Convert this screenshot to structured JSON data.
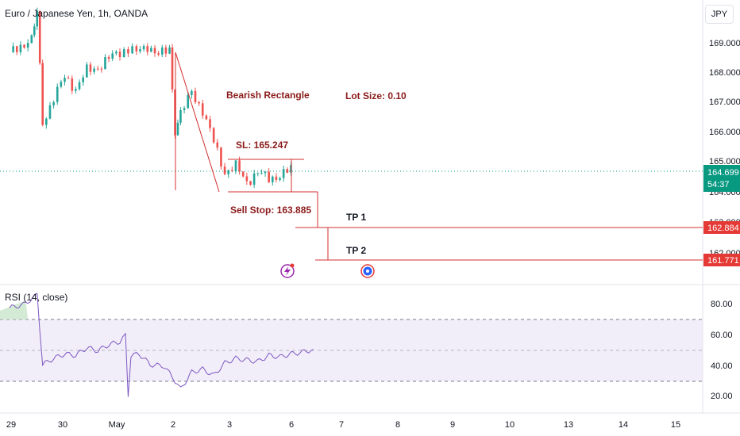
{
  "header": {
    "title": "Euro / Japanese Yen, 1h, OANDA",
    "currency_button": "JPY"
  },
  "price_axis": {
    "ticks": [
      "169.000",
      "168.000",
      "167.000",
      "166.000",
      "165.000",
      "164.000",
      "163.000",
      "162.000"
    ],
    "last_price": "164.699",
    "countdown": "54:37",
    "tp1_tag": "162.884",
    "tp2_tag": "161.771"
  },
  "annotations": {
    "pattern": "Bearish Rectangle",
    "lot_size": "Lot Size: 0.10",
    "stop_loss": "SL: 165.247",
    "sell_stop": "Sell Stop: 163.885",
    "tp1": "TP 1",
    "tp2": "TP 2"
  },
  "rsi": {
    "label": "RSI (14, close)",
    "ticks": [
      "80.00",
      "60.00",
      "40.00",
      "20.00"
    ]
  },
  "time_axis": {
    "labels": [
      "29",
      "30",
      "May",
      "2",
      "3",
      "6",
      "7",
      "8",
      "9",
      "10",
      "13",
      "14",
      "15"
    ]
  },
  "colors": {
    "up": "#26a69a",
    "down": "#ef5350",
    "annotation": "#d32f2f",
    "annotation_text": "#8b1a1a",
    "rsi_line": "#7e57c2",
    "rsi_band": "#ede7f6",
    "last_price": "#089981"
  },
  "icons": [
    "lightning-event-icon",
    "economic-event-icon"
  ],
  "chart_data": {
    "type": "candlestick",
    "symbol": "Euro / Japanese Yen",
    "interval": "1h",
    "ylim": [
      161.2,
      169.8
    ],
    "levels": {
      "last": 164.699,
      "sl": 165.247,
      "sell_stop": 163.885,
      "tp1": 162.884,
      "tp2": 161.771
    },
    "series": [
      {
        "name": "price",
        "x": [
          0.0,
          0.2,
          0.4,
          0.5,
          0.6,
          0.8,
          1.0,
          1.2,
          1.4,
          1.6,
          1.8,
          2.0,
          2.15,
          2.3,
          2.5,
          2.7,
          2.9,
          3.0,
          3.1,
          3.3,
          3.5,
          3.7,
          3.9,
          4.1,
          4.3,
          4.5,
          4.7,
          4.9,
          5.1,
          5.3,
          5.5
        ],
        "y": [
          168.5,
          168.7,
          168.9,
          169.8,
          166.2,
          167.0,
          167.7,
          167.3,
          167.9,
          168.0,
          168.3,
          168.5,
          168.6,
          168.5,
          168.7,
          168.4,
          168.6,
          166.0,
          166.5,
          167.2,
          166.6,
          165.6,
          164.6,
          164.8,
          164.3,
          164.6,
          164.4,
          164.5,
          164.7,
          164.6,
          164.7
        ]
      },
      {
        "name": "RSI (14, close)",
        "x": [
          0.0,
          0.25,
          0.45,
          0.5,
          0.6,
          0.8,
          1.0,
          1.2,
          1.4,
          1.6,
          1.8,
          2.0,
          2.1,
          2.15,
          2.2,
          2.35,
          2.55,
          2.8,
          2.95,
          3.1,
          3.3,
          3.5,
          3.7,
          3.9,
          4.1,
          4.3,
          4.5,
          4.7,
          4.9,
          5.1,
          5.3,
          5.5
        ],
        "y": [
          78,
          80,
          85,
          87,
          41,
          45,
          48,
          47,
          52,
          50,
          54,
          56,
          60,
          21,
          47,
          48,
          41,
          40,
          33,
          25,
          36,
          38,
          34,
          42,
          45,
          44,
          43,
          47,
          46,
          48,
          49,
          51
        ]
      }
    ],
    "rsi_band": [
      30,
      70
    ],
    "rsi_mid": 50,
    "x_ticks": [
      "29",
      "30",
      "May",
      "2",
      "3",
      "6",
      "7",
      "8",
      "9",
      "10",
      "13",
      "14",
      "15"
    ]
  }
}
